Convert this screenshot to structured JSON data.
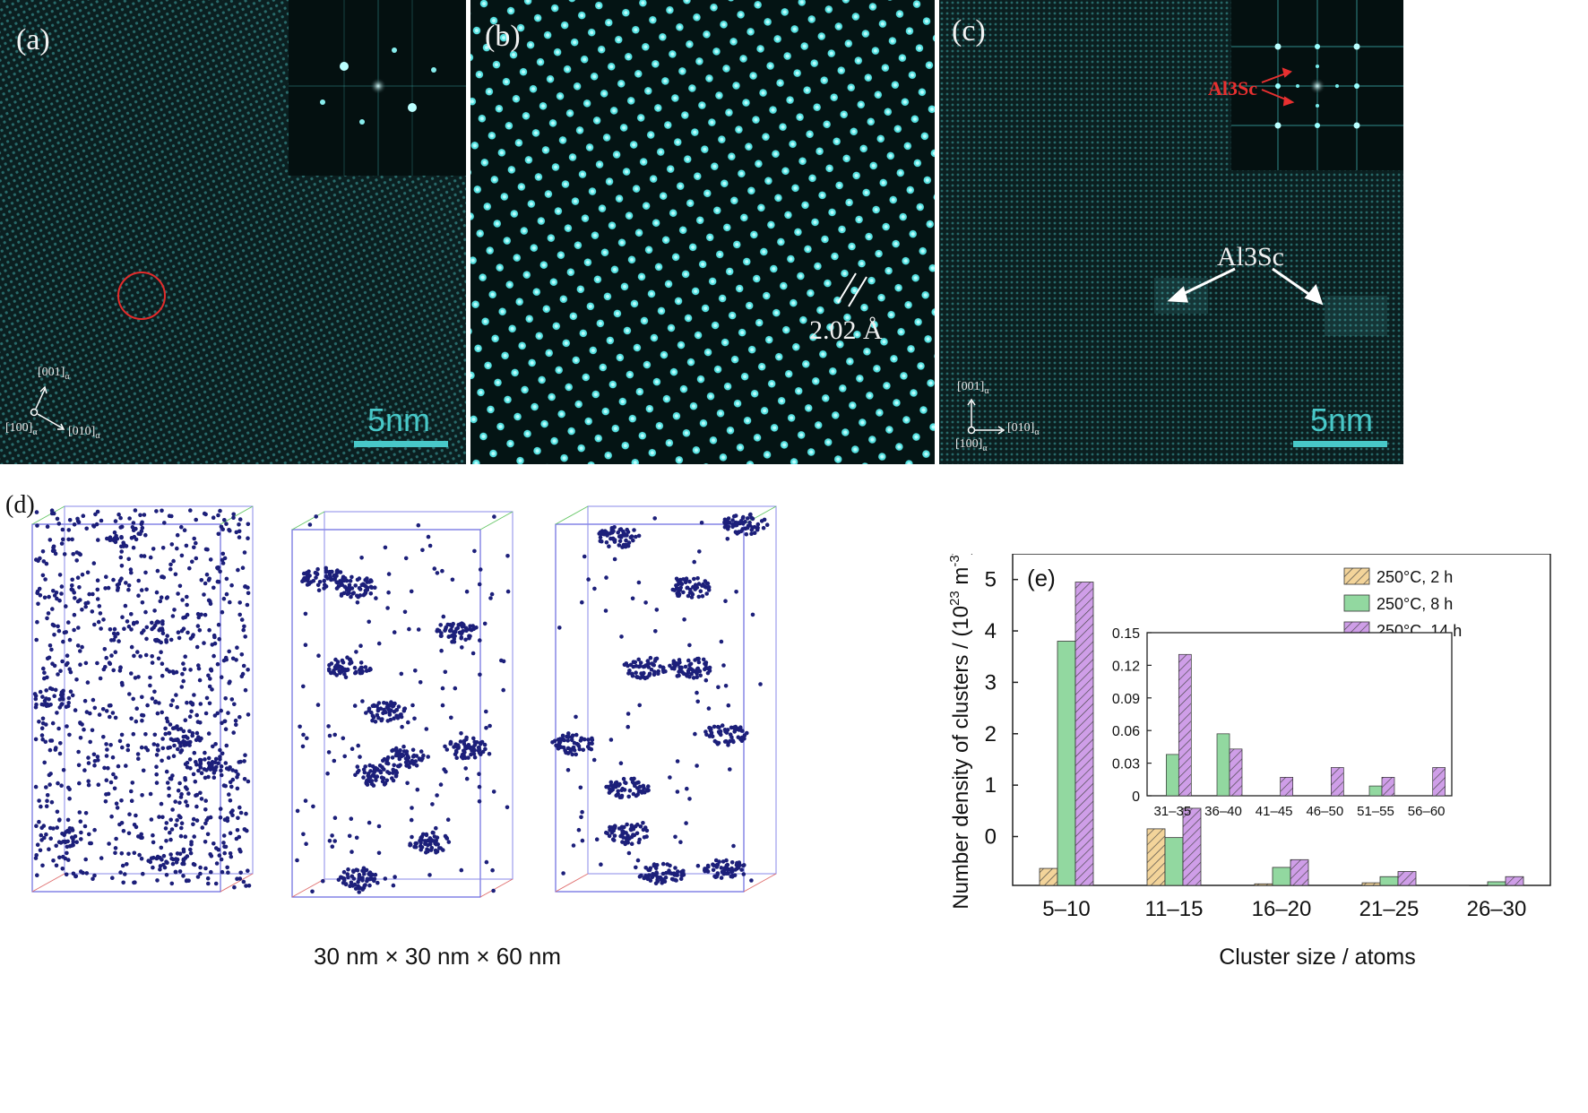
{
  "panels": {
    "a": {
      "label": "(a)",
      "scale_text": "5nm",
      "axes": {
        "up": "[001]",
        "right": "[010]",
        "origin": "[100]",
        "subscript": "α"
      }
    },
    "b": {
      "label": "(b)",
      "spacing_text": "2.02 Å"
    },
    "c": {
      "label": "(c)",
      "scale_text": "5nm",
      "inset_label": "Al3Sc",
      "main_label": "Al3Sc",
      "axes": {
        "up": "[001]",
        "right": "[010]",
        "origin": "[100]",
        "subscript": "α"
      }
    },
    "d": {
      "label": "(d)",
      "caption": "30 nm × 30 nm × 60 nm"
    }
  },
  "colors": {
    "stem_background": "#0b1f20",
    "lattice_cyan": "#5fe0e0",
    "annotation_red": "#e83030",
    "atom_navy": "#1c1f7a",
    "bar_2h": "#f3d49a",
    "bar_8h": "#92d8a0",
    "bar_14h": "#cf9ee8"
  },
  "chart_data": {
    "type": "bar",
    "panel_label": "(e)",
    "ylabel_text": "Number density of clusters / (10",
    "ylabel_exp1": "23",
    "ylabel_mid": " m",
    "ylabel_exp2": "-3",
    "ylabel_end": ")",
    "xlabel": "Cluster size / atoms",
    "categories": [
      "5–10",
      "11–15",
      "16–20",
      "21–25",
      "26–30"
    ],
    "yticks": [
      "0",
      "1",
      "2",
      "3",
      "4",
      "5"
    ],
    "ylim": [
      -0.95,
      5.5
    ],
    "series": [
      {
        "name": "250°C, 2 h",
        "values": [
          -0.62,
          0.15,
          -0.92,
          -0.9,
          -0.95
        ]
      },
      {
        "name": "250°C, 8 h",
        "values": [
          3.8,
          -0.02,
          -0.6,
          -0.78,
          -0.88
        ]
      },
      {
        "name": "250°C, 14 h",
        "values": [
          4.95,
          0.55,
          -0.45,
          -0.68,
          -0.78
        ]
      }
    ],
    "legend_position": "top-right",
    "inset": {
      "type": "bar",
      "categories": [
        "31–35",
        "36–40",
        "41–45",
        "46–50",
        "51–55",
        "56–60"
      ],
      "yticks": [
        "0",
        "0.03",
        "0.06",
        "0.09",
        "0.12",
        "0.15"
      ],
      "ylim": [
        0,
        0.15
      ],
      "series": [
        {
          "name": "250°C, 2 h",
          "values": [
            0,
            0,
            0,
            0,
            0,
            0
          ]
        },
        {
          "name": "250°C, 8 h",
          "values": [
            0.038,
            0.057,
            0,
            0,
            0.009,
            0
          ]
        },
        {
          "name": "250°C, 14 h",
          "values": [
            0.13,
            0.043,
            0.017,
            0.026,
            0.017,
            0.026
          ]
        }
      ]
    }
  }
}
